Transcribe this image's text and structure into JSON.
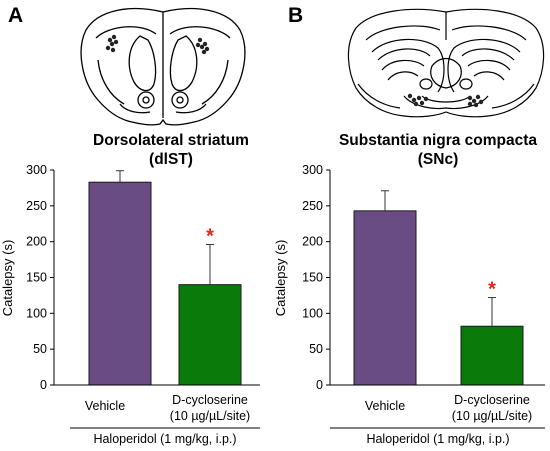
{
  "chart_data": [
    {
      "type": "bar",
      "panel_label": "A",
      "title": "Dorsolateral striatum",
      "subtitle": "(dlST)",
      "ylabel": "Catalepsy (s)",
      "xlabel": "",
      "ylim": [
        0,
        300
      ],
      "yticks": [
        0,
        50,
        100,
        150,
        200,
        250,
        300
      ],
      "grid": false,
      "categories": [
        "Vehicle",
        "D-cycloserine"
      ],
      "category_sublabels": [
        "",
        "(10 µg/µL/site)"
      ],
      "values": [
        283,
        140
      ],
      "errors": [
        16,
        56
      ],
      "colors": [
        "#6a4c85",
        "#0a7a0a"
      ],
      "significance": [
        "",
        "*"
      ],
      "treatment_label": "Haloperidol (1 mg/kg, i.p.)"
    },
    {
      "type": "bar",
      "panel_label": "B",
      "title": "Substantia nigra compacta",
      "subtitle": "(SNc)",
      "ylabel": "Catalepsy (s)",
      "xlabel": "",
      "ylim": [
        0,
        300
      ],
      "yticks": [
        0,
        50,
        100,
        150,
        200,
        250,
        300
      ],
      "grid": false,
      "categories": [
        "Vehicle",
        "D-cycloserine"
      ],
      "category_sublabels": [
        "",
        "(10 µg/µL/site)"
      ],
      "values": [
        243,
        82
      ],
      "errors": [
        28,
        40
      ],
      "colors": [
        "#6a4c85",
        "#0a7a0a"
      ],
      "significance": [
        "",
        "*"
      ],
      "treatment_label": "Haloperidol (1 mg/kg, i.p.)"
    }
  ],
  "colors": {
    "significance_star": "#e8231f",
    "bar_outline": "#1a1a1a"
  }
}
